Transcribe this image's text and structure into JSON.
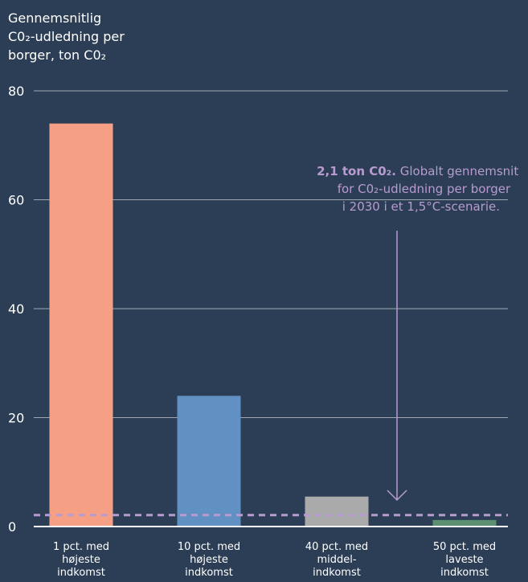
{
  "chart_data": {
    "type": "bar",
    "ylabel_lines": [
      "Gennemsnitlig",
      "C0₂-udledning per",
      "borger, ton C0₂"
    ],
    "categories": [
      [
        "1 pct. med",
        "højeste",
        "indkomst"
      ],
      [
        "10 pct. med",
        "højeste",
        "indkomst"
      ],
      [
        "40 pct. med",
        "middel-",
        "indkomst"
      ],
      [
        "50 pct. med",
        "laveste",
        "indkomst"
      ]
    ],
    "values": [
      74,
      24,
      5.5,
      1.2
    ],
    "colors": [
      "#f5a085",
      "#6190c2",
      "#aaaaaa",
      "#5b8f72"
    ],
    "yticks": [
      0,
      20,
      40,
      60,
      80
    ],
    "ylim": [
      0,
      80
    ],
    "grid": true,
    "reference_line": {
      "value": 2.1,
      "color": "#b89bd0",
      "annotation_bold": "2,1 ton C0₂.",
      "annotation_lines": [
        "Globalt gennemsnit",
        "for C0₂-udledning per borger",
        "i 2030 i et 1,5°C-scenarie."
      ]
    }
  }
}
